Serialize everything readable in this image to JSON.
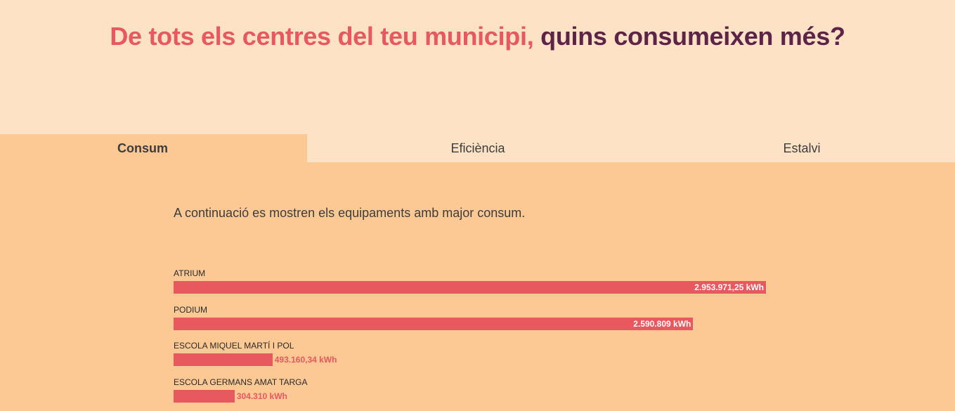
{
  "header": {
    "title_part1": "De tots els centres del teu municipi,",
    "title_part2": "quins consumeixen més?"
  },
  "tabs": [
    {
      "label": "Consum",
      "active": true
    },
    {
      "label": "Eficiència",
      "active": false
    },
    {
      "label": "Estalvi",
      "active": false
    }
  ],
  "intro": "A continuació es mostren els equipaments amb major consum.",
  "colors": {
    "bar": "#e8585f",
    "background": "#fcc894",
    "header": "#fde2c6",
    "title_dark": "#5e2447"
  },
  "chart_data": {
    "type": "bar",
    "orientation": "horizontal",
    "categories": [
      "ATRIUM",
      "PODIUM",
      "ESCOLA MIQUEL MARTÍ I POL",
      "ESCOLA GERMANS AMAT TARGA"
    ],
    "values": [
      2953971.25,
      2590809,
      493160.34,
      304310
    ],
    "value_labels": [
      "2.953.971,25 kWh",
      "2.590.809 kWh",
      "493.160,34 kWh",
      "304.310 kWh"
    ],
    "unit": "kWh"
  }
}
